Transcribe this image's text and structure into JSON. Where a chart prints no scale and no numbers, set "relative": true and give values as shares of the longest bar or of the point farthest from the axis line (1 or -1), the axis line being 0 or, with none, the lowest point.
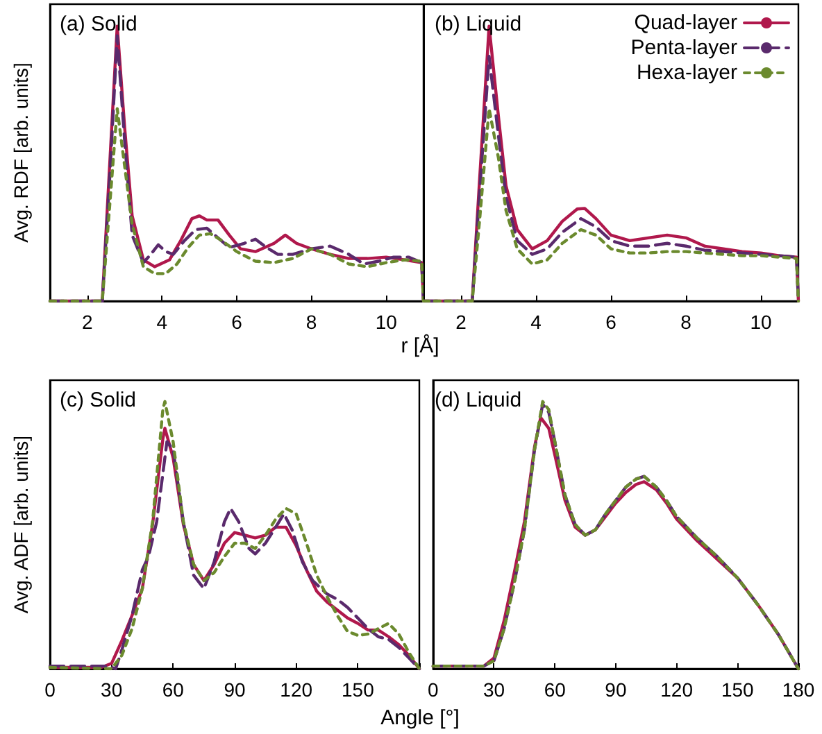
{
  "chart_data": [
    {
      "type": "line",
      "title": "(a) Solid",
      "ylabel": "Avg. RDF [arb. units]",
      "xlabel": "r [Å]",
      "relative": true,
      "xlim": [
        1,
        11
      ],
      "xticks": [
        2,
        4,
        6,
        8,
        10
      ],
      "tick_labels": "x",
      "legend": false,
      "grid": false,
      "marker": "none",
      "series": [
        {
          "color": "#b0184c",
          "line_style": "solid",
          "x": [
            1,
            2.4,
            2.6,
            2.8,
            3.0,
            3.2,
            3.5,
            3.8,
            4.2,
            4.5,
            4.8,
            5.0,
            5.2,
            5.5,
            5.8,
            6.1,
            6.5,
            7.0,
            7.3,
            7.6,
            8.0,
            8.5,
            9.0,
            9.5,
            10,
            10.5,
            10.95,
            11
          ],
          "values": [
            0,
            0,
            0.5,
            1.0,
            0.63,
            0.31,
            0.15,
            0.125,
            0.15,
            0.22,
            0.3,
            0.31,
            0.295,
            0.295,
            0.24,
            0.19,
            0.18,
            0.21,
            0.24,
            0.21,
            0.19,
            0.17,
            0.155,
            0.155,
            0.16,
            0.15,
            0.14,
            0
          ]
        },
        {
          "color": "#5a2a6c",
          "line_style": "dashed",
          "x": [
            1,
            2.4,
            2.6,
            2.8,
            3.0,
            3.2,
            3.5,
            3.7,
            3.9,
            4.1,
            4.3,
            4.6,
            4.9,
            5.2,
            5.5,
            5.8,
            6.2,
            6.5,
            6.8,
            7.1,
            7.5,
            8.0,
            8.5,
            9.0,
            9.4,
            9.8,
            10.2,
            10.6,
            10.95,
            11
          ],
          "values": [
            0,
            0,
            0.45,
            0.965,
            0.58,
            0.24,
            0.14,
            0.17,
            0.205,
            0.18,
            0.17,
            0.22,
            0.26,
            0.265,
            0.23,
            0.195,
            0.21,
            0.225,
            0.195,
            0.17,
            0.17,
            0.19,
            0.2,
            0.17,
            0.135,
            0.145,
            0.16,
            0.16,
            0.14,
            0
          ]
        },
        {
          "color": "#6b8a2e",
          "line_style": "dotted",
          "x": [
            1,
            2.4,
            2.6,
            2.8,
            3.0,
            3.2,
            3.5,
            3.8,
            4.1,
            4.4,
            4.7,
            5.0,
            5.3,
            5.6,
            6.0,
            6.5,
            7.0,
            7.5,
            8.0,
            8.5,
            9.0,
            9.5,
            10,
            10.5,
            10.95,
            11
          ],
          "values": [
            0,
            0,
            0.35,
            0.7,
            0.49,
            0.28,
            0.125,
            0.1,
            0.1,
            0.135,
            0.195,
            0.24,
            0.245,
            0.22,
            0.18,
            0.145,
            0.14,
            0.155,
            0.19,
            0.17,
            0.135,
            0.125,
            0.14,
            0.15,
            0.145,
            0
          ]
        }
      ]
    },
    {
      "type": "line",
      "title": "(b) Liquid",
      "relative": true,
      "xlim": [
        1,
        11
      ],
      "xticks": [
        2,
        4,
        6,
        8,
        10
      ],
      "tick_labels": "x",
      "legend": "top right",
      "grid": false,
      "marker": "none",
      "series": [
        {
          "name": "Quad-layer",
          "color": "#b0184c",
          "line_style": "solid",
          "x": [
            1,
            2.3,
            2.5,
            2.75,
            3.0,
            3.2,
            3.5,
            3.9,
            4.3,
            4.7,
            5.1,
            5.3,
            5.6,
            6.0,
            6.5,
            7.0,
            7.5,
            8.0,
            8.5,
            9.0,
            9.5,
            10,
            10.5,
            10.95,
            11
          ],
          "values": [
            0,
            0,
            0.45,
            1.0,
            0.67,
            0.42,
            0.26,
            0.19,
            0.22,
            0.29,
            0.335,
            0.337,
            0.3,
            0.24,
            0.22,
            0.23,
            0.24,
            0.23,
            0.2,
            0.19,
            0.18,
            0.175,
            0.165,
            0.16,
            0
          ]
        },
        {
          "name": "Penta-layer",
          "color": "#5a2a6c",
          "line_style": "dashed",
          "x": [
            1,
            2.3,
            2.5,
            2.75,
            3.0,
            3.2,
            3.5,
            3.9,
            4.3,
            4.7,
            5.2,
            5.6,
            6.0,
            6.5,
            7.0,
            7.5,
            8.0,
            8.5,
            9.0,
            9.5,
            10,
            10.5,
            10.95,
            11
          ],
          "values": [
            0,
            0,
            0.4,
            0.89,
            0.6,
            0.38,
            0.22,
            0.17,
            0.19,
            0.25,
            0.3,
            0.27,
            0.22,
            0.2,
            0.2,
            0.21,
            0.2,
            0.185,
            0.18,
            0.175,
            0.17,
            0.165,
            0.16,
            0
          ]
        },
        {
          "name": "Hexa-layer",
          "color": "#6b8a2e",
          "line_style": "dotted",
          "x": [
            1,
            2.3,
            2.5,
            2.75,
            3.0,
            3.2,
            3.5,
            3.9,
            4.3,
            4.7,
            5.2,
            5.6,
            6.0,
            6.5,
            7.0,
            7.5,
            8.0,
            8.5,
            9.0,
            9.5,
            10,
            10.5,
            10.95,
            11
          ],
          "values": [
            0,
            0,
            0.3,
            0.7,
            0.52,
            0.33,
            0.19,
            0.135,
            0.15,
            0.21,
            0.26,
            0.24,
            0.19,
            0.175,
            0.175,
            0.18,
            0.18,
            0.175,
            0.17,
            0.165,
            0.165,
            0.16,
            0.155,
            0
          ]
        }
      ]
    },
    {
      "type": "line",
      "title": "(c) Solid",
      "ylabel": "Avg. ADF [arb. units]",
      "xlabel": "Angle [°]",
      "relative": true,
      "xlim": [
        0,
        180
      ],
      "xticks": [
        0,
        30,
        60,
        90,
        120,
        150,
        {
          "value": 180,
          "label": null
        }
      ],
      "tick_labels": "x",
      "legend": false,
      "grid": false,
      "marker": "none",
      "series": [
        {
          "color": "#b0184c",
          "line_style": "solid",
          "x": [
            0,
            25,
            30,
            35,
            40,
            45,
            50,
            55,
            56,
            60,
            65,
            70,
            75,
            80,
            85,
            90,
            95,
            100,
            105,
            110,
            115,
            120,
            125,
            130,
            135,
            140,
            145,
            150,
            155,
            160,
            165,
            170,
            175,
            180
          ],
          "values": [
            0.005,
            0.005,
            0.02,
            0.105,
            0.2,
            0.3,
            0.54,
            0.86,
            0.9,
            0.79,
            0.54,
            0.39,
            0.33,
            0.39,
            0.47,
            0.51,
            0.5,
            0.49,
            0.5,
            0.53,
            0.53,
            0.46,
            0.37,
            0.29,
            0.25,
            0.22,
            0.19,
            0.17,
            0.145,
            0.145,
            0.12,
            0.09,
            0.05,
            0
          ]
        },
        {
          "color": "#5a2a6c",
          "line_style": "dashed",
          "x": [
            0,
            28,
            32,
            35,
            40,
            45,
            48,
            52,
            57,
            60,
            65,
            70,
            75,
            80,
            85,
            88,
            92,
            97,
            100,
            105,
            110,
            114,
            118,
            123,
            128,
            135,
            140,
            145,
            150,
            155,
            160,
            165,
            170,
            175,
            180
          ],
          "values": [
            0.01,
            0.01,
            0,
            0.07,
            0.2,
            0.37,
            0.42,
            0.55,
            0.85,
            0.82,
            0.55,
            0.35,
            0.3,
            0.4,
            0.55,
            0.6,
            0.55,
            0.45,
            0.43,
            0.47,
            0.53,
            0.58,
            0.52,
            0.4,
            0.33,
            0.28,
            0.26,
            0.23,
            0.19,
            0.15,
            0.12,
            0.11,
            0.08,
            0.04,
            0
          ]
        },
        {
          "color": "#6b8a2e",
          "line_style": "dotted",
          "x": [
            0,
            30,
            35,
            40,
            45,
            50,
            55,
            56,
            60,
            65,
            70,
            75,
            80,
            85,
            90,
            95,
            100,
            105,
            110,
            115,
            120,
            125,
            130,
            135,
            140,
            145,
            150,
            155,
            160,
            165,
            170,
            175,
            180
          ],
          "values": [
            0.005,
            0,
            0.05,
            0.15,
            0.3,
            0.55,
            0.97,
            1.0,
            0.85,
            0.55,
            0.39,
            0.33,
            0.36,
            0.42,
            0.47,
            0.47,
            0.45,
            0.5,
            0.56,
            0.6,
            0.58,
            0.47,
            0.35,
            0.27,
            0.2,
            0.14,
            0.125,
            0.13,
            0.15,
            0.17,
            0.13,
            0.06,
            0
          ]
        }
      ]
    },
    {
      "type": "line",
      "title": "(d) Liquid",
      "relative": true,
      "xlim": [
        0,
        180
      ],
      "xticks": [
        0,
        30,
        60,
        90,
        120,
        150,
        180
      ],
      "tick_labels": "x",
      "legend": false,
      "grid": false,
      "marker": "none",
      "series": [
        {
          "color": "#b0184c",
          "line_style": "solid",
          "x": [
            0,
            25,
            30,
            35,
            40,
            45,
            50,
            53,
            57,
            60,
            65,
            70,
            75,
            80,
            85,
            90,
            95,
            100,
            104,
            110,
            115,
            120,
            130,
            140,
            150,
            160,
            170,
            180
          ],
          "values": [
            0.01,
            0.01,
            0.04,
            0.18,
            0.36,
            0.55,
            0.83,
            0.94,
            0.9,
            0.8,
            0.63,
            0.53,
            0.5,
            0.52,
            0.57,
            0.62,
            0.66,
            0.69,
            0.7,
            0.67,
            0.62,
            0.56,
            0.48,
            0.41,
            0.34,
            0.24,
            0.13,
            0
          ]
        },
        {
          "color": "#5a2a6c",
          "line_style": "dashed",
          "x": [
            0,
            25,
            30,
            35,
            40,
            45,
            50,
            54,
            57,
            60,
            65,
            70,
            75,
            80,
            85,
            90,
            95,
            100,
            104,
            110,
            115,
            120,
            130,
            140,
            150,
            160,
            170,
            180
          ],
          "values": [
            0.01,
            0.01,
            0.03,
            0.15,
            0.32,
            0.52,
            0.82,
            0.99,
            0.96,
            0.85,
            0.65,
            0.54,
            0.5,
            0.52,
            0.58,
            0.63,
            0.68,
            0.71,
            0.72,
            0.68,
            0.63,
            0.57,
            0.49,
            0.42,
            0.34,
            0.24,
            0.13,
            0
          ]
        },
        {
          "color": "#6b8a2e",
          "line_style": "dotted",
          "x": [
            0,
            25,
            30,
            35,
            40,
            45,
            50,
            54,
            57,
            60,
            65,
            70,
            75,
            80,
            85,
            90,
            95,
            100,
            104,
            110,
            115,
            120,
            130,
            140,
            150,
            160,
            170,
            180
          ],
          "values": [
            0.01,
            0.01,
            0.03,
            0.15,
            0.32,
            0.52,
            0.82,
            1.0,
            0.97,
            0.85,
            0.65,
            0.54,
            0.5,
            0.52,
            0.58,
            0.63,
            0.68,
            0.71,
            0.72,
            0.68,
            0.63,
            0.57,
            0.49,
            0.42,
            0.34,
            0.24,
            0.13,
            0
          ]
        }
      ]
    }
  ]
}
